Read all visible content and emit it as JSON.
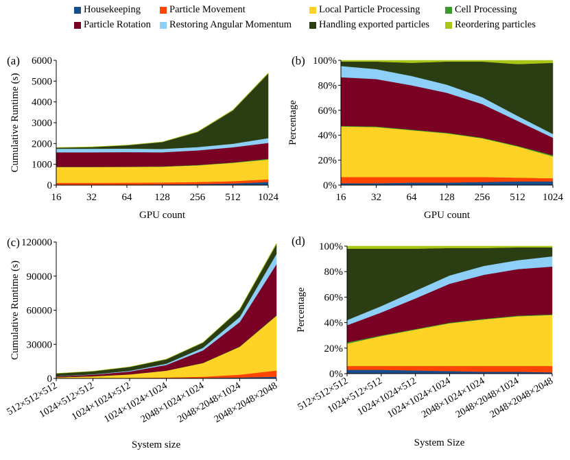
{
  "legend": [
    {
      "name": "Housekeeping",
      "color": "#174f8c"
    },
    {
      "name": "Particle Movement",
      "color": "#ff4500"
    },
    {
      "name": "Local Particle Processing",
      "color": "#fed326"
    },
    {
      "name": "Cell Processing",
      "color": "#3a9a2a"
    },
    {
      "name": "Particle Rotation",
      "color": "#7a0024"
    },
    {
      "name": "Restoring Angular Momentum",
      "color": "#8dcff7"
    },
    {
      "name": "Handling exported particles",
      "color": "#2b3d12"
    },
    {
      "name": "Reordering particles",
      "color": "#a9c617"
    }
  ],
  "chart_data": [
    {
      "type": "area",
      "panel_label": "(a)",
      "stacked": true,
      "xlabel": "GPU count",
      "ylabel": "Cumulative Runtime (s)",
      "categories": [
        "16",
        "32",
        "64",
        "128",
        "256",
        "512",
        "1024"
      ],
      "ylim": [
        0,
        6000
      ],
      "yticks": [
        "0",
        "1000",
        "2000",
        "3000",
        "4000",
        "5000",
        "6000"
      ],
      "series": [
        {
          "name": "Housekeeping",
          "values": [
            20,
            25,
            30,
            35,
            50,
            80,
            150
          ]
        },
        {
          "name": "Particle Movement",
          "values": [
            90,
            85,
            85,
            90,
            100,
            110,
            130
          ]
        },
        {
          "name": "Local Particle Processing",
          "values": [
            760,
            760,
            760,
            760,
            800,
            880,
            950
          ]
        },
        {
          "name": "Cell Processing",
          "values": [
            10,
            10,
            10,
            15,
            20,
            20,
            40
          ]
        },
        {
          "name": "Particle Rotation",
          "values": [
            700,
            700,
            700,
            680,
            700,
            730,
            760
          ]
        },
        {
          "name": "Restoring Angular Momentum",
          "values": [
            170,
            170,
            170,
            160,
            160,
            170,
            230
          ]
        },
        {
          "name": "Handling exported particles",
          "values": [
            50,
            80,
            160,
            330,
            720,
            1600,
            3100
          ]
        },
        {
          "name": "Reordering particles",
          "values": [
            10,
            10,
            10,
            10,
            20,
            30,
            40
          ]
        }
      ]
    },
    {
      "type": "area",
      "panel_label": "(b)",
      "stacked": true,
      "xlabel": "GPU count",
      "ylabel": "Percentage",
      "categories": [
        "16",
        "32",
        "64",
        "128",
        "256",
        "512",
        "1024"
      ],
      "ylim": [
        0,
        100
      ],
      "yticks": [
        "0%",
        "20%",
        "40%",
        "60%",
        "80%",
        "100%"
      ],
      "series": [
        {
          "name": "Housekeeping",
          "values": [
            1.5,
            1.5,
            2,
            2,
            2.5,
            3,
            3
          ]
        },
        {
          "name": "Particle Movement",
          "values": [
            5,
            5,
            4.5,
            4.5,
            4,
            3,
            2.5
          ]
        },
        {
          "name": "Local Particle Processing",
          "values": [
            40.5,
            40,
            37.5,
            35,
            31,
            25,
            17.5
          ]
        },
        {
          "name": "Cell Processing",
          "values": [
            0.5,
            0.5,
            0.5,
            0.5,
            0.5,
            0.5,
            1
          ]
        },
        {
          "name": "Particle Rotation",
          "values": [
            39,
            38,
            35.5,
            32,
            27,
            20,
            14
          ]
        },
        {
          "name": "Restoring Angular Momentum",
          "values": [
            9,
            8,
            7.5,
            6.5,
            5.5,
            4,
            3
          ]
        },
        {
          "name": "Handling exported particles",
          "values": [
            3.5,
            6,
            10.5,
            18.5,
            28.5,
            41.5,
            57
          ]
        },
        {
          "name": "Reordering particles",
          "values": [
            1,
            1,
            2,
            1,
            1,
            3,
            2
          ]
        }
      ]
    },
    {
      "type": "area",
      "panel_label": "(c)",
      "stacked": true,
      "xlabel": "System size",
      "ylabel": "Cumulative Runtime (s)",
      "categories": [
        "512×512×512",
        "1024×512×512",
        "1024×1024×512",
        "1024×1024×1024",
        "2048×1024×1024",
        "2048×2048×1024",
        "2048×2048×2048"
      ],
      "ylim": [
        0,
        120000
      ],
      "yticks": [
        "0",
        "30000",
        "60000",
        "90000",
        "120000"
      ],
      "series": [
        {
          "name": "Housekeeping",
          "values": [
            100,
            150,
            200,
            300,
            500,
            800,
            1500
          ]
        },
        {
          "name": "Particle Movement",
          "values": [
            100,
            200,
            300,
            500,
            1000,
            2500,
            5500
          ]
        },
        {
          "name": "Local Particle Processing",
          "values": [
            800,
            1500,
            3000,
            6000,
            12000,
            24500,
            48000
          ]
        },
        {
          "name": "Cell Processing",
          "values": [
            50,
            50,
            100,
            100,
            200,
            300,
            500
          ]
        },
        {
          "name": "Particle Rotation",
          "values": [
            700,
            1400,
            2500,
            5000,
            11000,
            21500,
            45000
          ]
        },
        {
          "name": "Restoring Angular Momentum",
          "values": [
            200,
            300,
            600,
            1100,
            2300,
            4500,
            9000
          ]
        },
        {
          "name": "Handling exported particles",
          "values": [
            2400,
            2700,
            3400,
            3800,
            4500,
            6500,
            8500
          ]
        },
        {
          "name": "Reordering particles",
          "values": [
            50,
            50,
            100,
            200,
            300,
            400,
            1000
          ]
        }
      ]
    },
    {
      "type": "area",
      "panel_label": "(d)",
      "stacked": true,
      "xlabel": "System Size",
      "ylabel": "Percentage",
      "categories": [
        "512×512×512",
        "1024×512×512",
        "1024×1024×512",
        "1024×1024×1024",
        "2048×1024×1024",
        "2048×2048×1024",
        "2048×2048×2048"
      ],
      "ylim": [
        0,
        100
      ],
      "yticks": [
        "0%",
        "20%",
        "40%",
        "60%",
        "80%",
        "100%"
      ],
      "series": [
        {
          "name": "Housekeeping",
          "values": [
            3,
            3,
            2.5,
            2,
            1.5,
            1.5,
            1
          ]
        },
        {
          "name": "Particle Movement",
          "values": [
            3,
            3,
            3.5,
            4,
            4.5,
            4.5,
            5
          ]
        },
        {
          "name": "Local Particle Processing",
          "values": [
            17.5,
            23.5,
            28.5,
            33.5,
            36.5,
            39,
            40
          ]
        },
        {
          "name": "Cell Processing",
          "values": [
            1,
            0.5,
            0.5,
            0.5,
            0.5,
            0.5,
            0.5
          ]
        },
        {
          "name": "Particle Rotation",
          "values": [
            13.5,
            18,
            24,
            30.5,
            34.5,
            36.5,
            37.5
          ]
        },
        {
          "name": "Restoring Angular Momentum",
          "values": [
            4,
            5,
            6,
            6.5,
            7,
            7,
            8
          ]
        },
        {
          "name": "Handling exported particles",
          "values": [
            56,
            45,
            33,
            21.5,
            14,
            10,
            7
          ]
        },
        {
          "name": "Reordering particles",
          "values": [
            2,
            2,
            2,
            1.5,
            1.5,
            1,
            1
          ]
        }
      ]
    }
  ]
}
